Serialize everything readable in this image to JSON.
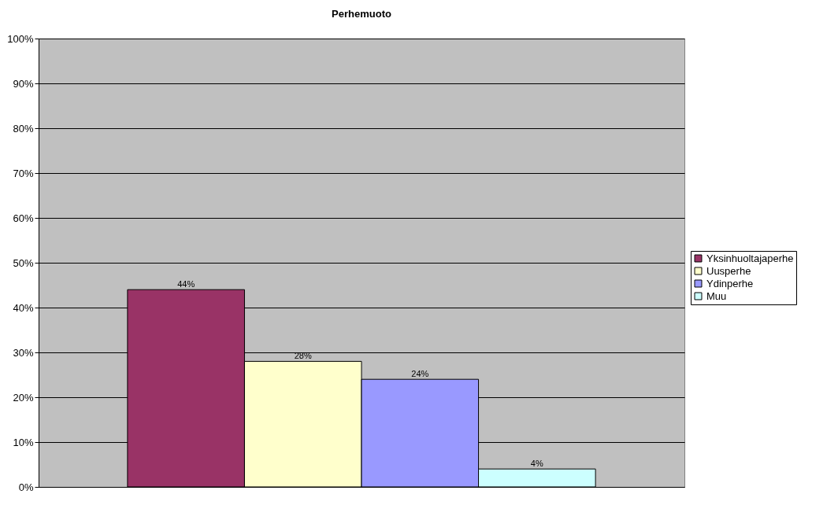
{
  "chart_data": {
    "type": "bar",
    "title": "Perhemuoto",
    "categories": [
      null
    ],
    "series": [
      {
        "name": "Yksinhuoltajaperhe",
        "color": "#993366",
        "values": [
          44
        ],
        "value_labels": [
          "44%"
        ]
      },
      {
        "name": "Uusperhe",
        "color": "#ffffcc",
        "values": [
          28
        ],
        "value_labels": [
          "28%"
        ]
      },
      {
        "name": "Ydinperhe",
        "color": "#9999ff",
        "values": [
          24
        ],
        "value_labels": [
          "24%"
        ]
      },
      {
        "name": "Muu",
        "color": "#ccffff",
        "values": [
          4
        ],
        "value_labels": [
          "4%"
        ]
      }
    ],
    "ylim": [
      0,
      100
    ],
    "yticks": [
      {
        "value": 0,
        "label": "0%"
      },
      {
        "value": 10,
        "label": "10%"
      },
      {
        "value": 20,
        "label": "20%"
      },
      {
        "value": 30,
        "label": "30%"
      },
      {
        "value": 40,
        "label": "40%"
      },
      {
        "value": 50,
        "label": "50%"
      },
      {
        "value": 60,
        "label": "60%"
      },
      {
        "value": 70,
        "label": "70%"
      },
      {
        "value": 80,
        "label": "80%"
      },
      {
        "value": 90,
        "label": "90%"
      },
      {
        "value": 100,
        "label": "100%"
      }
    ],
    "grid": "y",
    "legend": "right",
    "tick_labels": "y"
  }
}
